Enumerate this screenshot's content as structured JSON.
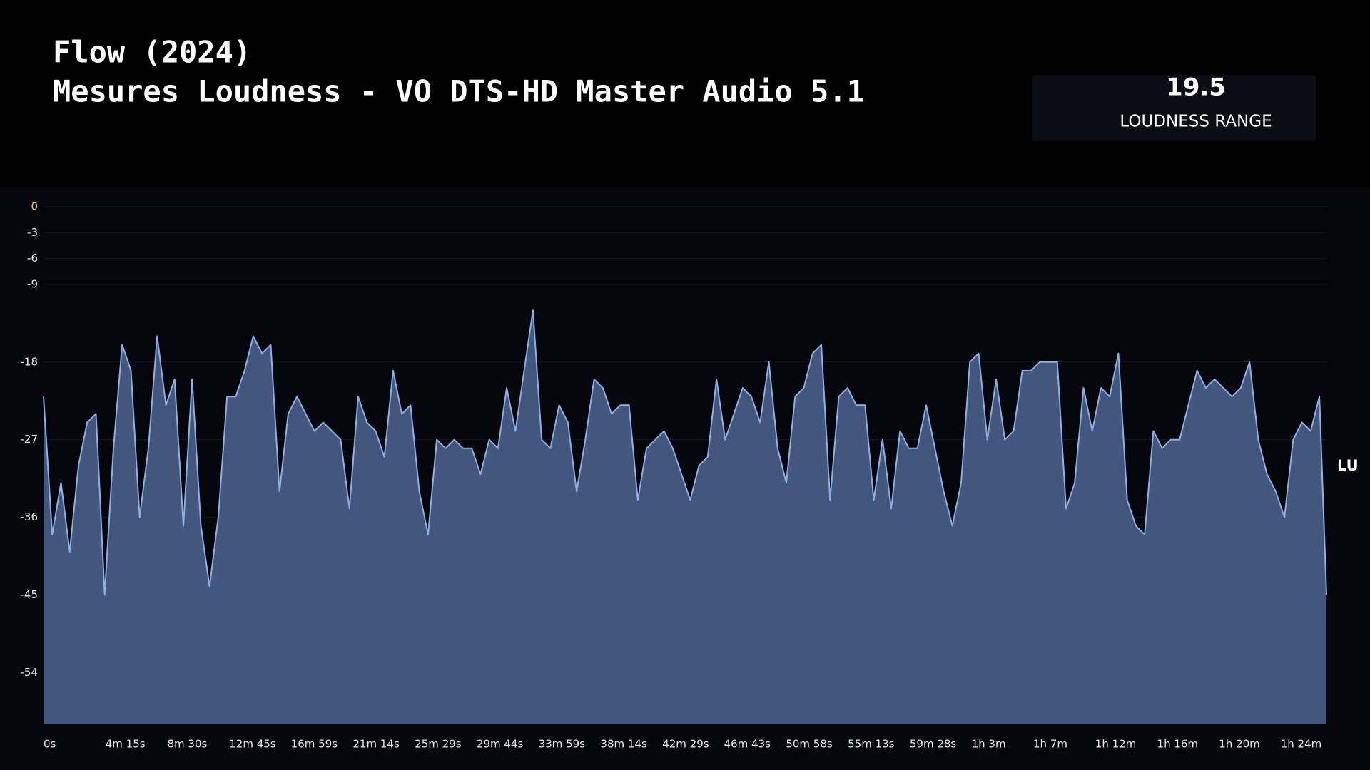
{
  "chart_data": {
    "type": "area",
    "title": "Flow (2024)",
    "subtitle": "Mesures Loudness - VO DTS-HD Master Audio 5.1",
    "stat": {
      "value": "19.5",
      "label": "LOUDNESS RANGE"
    },
    "y_label": "LU",
    "line_color": "#8ab0e8",
    "fill_color": "#4a6189",
    "grid": true,
    "xlim": [
      0,
      5285
    ],
    "ylim": [
      -60,
      0
    ],
    "yticks": [
      0,
      -3,
      -6,
      -9,
      -18,
      -27,
      -36,
      -45,
      -54
    ],
    "xticks": [
      {
        "value": 0,
        "label": "0s"
      },
      {
        "value": 255,
        "label": "4m 15s"
      },
      {
        "value": 510,
        "label": "8m 30s"
      },
      {
        "value": 765,
        "label": "12m 45s"
      },
      {
        "value": 1019,
        "label": "16m 59s"
      },
      {
        "value": 1274,
        "label": "21m 14s"
      },
      {
        "value": 1529,
        "label": "25m 29s"
      },
      {
        "value": 1784,
        "label": "29m 44s"
      },
      {
        "value": 2039,
        "label": "33m 59s"
      },
      {
        "value": 2294,
        "label": "38m 14s"
      },
      {
        "value": 2549,
        "label": "42m 29s"
      },
      {
        "value": 2803,
        "label": "46m 43s"
      },
      {
        "value": 3058,
        "label": "50m 58s"
      },
      {
        "value": 3313,
        "label": "55m 13s"
      },
      {
        "value": 3568,
        "label": "59m 28s"
      },
      {
        "value": 3823,
        "label": "1h 3m"
      },
      {
        "value": 4077,
        "label": "1h 7m"
      },
      {
        "value": 4332,
        "label": "1h 12m"
      },
      {
        "value": 4587,
        "label": "1h 16m"
      },
      {
        "value": 4842,
        "label": "1h 20m"
      },
      {
        "value": 5096,
        "label": "1h 24m"
      }
    ],
    "x": [
      0,
      36,
      72,
      108,
      144,
      180,
      216,
      252,
      288,
      324,
      360,
      396,
      432,
      468,
      504,
      540,
      576,
      612,
      648,
      684,
      720,
      756,
      792,
      828,
      864,
      900,
      936,
      972,
      1008,
      1044,
      1080,
      1116,
      1152,
      1188,
      1224,
      1260,
      1296,
      1332,
      1368,
      1404,
      1440,
      1476,
      1512,
      1548,
      1584,
      1620,
      1656,
      1692,
      1728,
      1764,
      1800,
      1836,
      1872,
      1908,
      1944,
      1980,
      2016,
      2052,
      2088,
      2124,
      2160,
      2196,
      2232,
      2268,
      2304,
      2340,
      2376,
      2412,
      2448,
      2484,
      2520,
      2556,
      2592,
      2628,
      2664,
      2700,
      2736,
      2772,
      2808,
      2844,
      2880,
      2916,
      2952,
      2988,
      3024,
      3060,
      3096,
      3132,
      3168,
      3204,
      3240,
      3276,
      3312,
      3348,
      3384,
      3420,
      3456,
      3492,
      3528,
      3564,
      3600,
      3636,
      3672,
      3708,
      3744,
      3780,
      3816,
      3852,
      3888,
      3924,
      3960,
      3996,
      4032,
      4068,
      4104,
      4140,
      4176,
      4212,
      4248,
      4284,
      4320,
      4356,
      4392,
      4428,
      4464,
      4500,
      4536,
      4572,
      4608,
      4644,
      4680,
      4716,
      4752,
      4788,
      4824,
      4860,
      4896,
      4932,
      4968,
      5004,
      5040,
      5076,
      5112,
      5148,
      5184,
      5220,
      5256,
      5285
    ],
    "values": [
      -22,
      -38,
      -32,
      -40,
      -30,
      -25,
      -24,
      -45,
      -28,
      -16,
      -19,
      -36,
      -28,
      -15,
      -23,
      -20,
      -37,
      -20,
      -37,
      -44,
      -36,
      -22,
      -22,
      -19,
      -15,
      -17,
      -16,
      -33,
      -24,
      -22,
      -24,
      -26,
      -25,
      -26,
      -27,
      -35,
      -22,
      -25,
      -26,
      -29,
      -19,
      -24,
      -23,
      -33,
      -38,
      -27,
      -28,
      -27,
      -28,
      -28,
      -31,
      -27,
      -28,
      -21,
      -26,
      -19,
      -12,
      -27,
      -28,
      -23,
      -25,
      -33,
      -27,
      -20,
      -21,
      -24,
      -23,
      -23,
      -34,
      -28,
      -27,
      -26,
      -28,
      -31,
      -34,
      -30,
      -29,
      -20,
      -27,
      -24,
      -21,
      -22,
      -25,
      -18,
      -28,
      -32,
      -22,
      -21,
      -17,
      -16,
      -34,
      -22,
      -21,
      -23,
      -23,
      -34,
      -27,
      -35,
      -26,
      -28,
      -28,
      -23,
      -28,
      -33,
      -37,
      -32,
      -18,
      -17,
      -27,
      -20,
      -27,
      -26,
      -19,
      -19,
      -18,
      -18,
      -18,
      -35,
      -32,
      -21,
      -26,
      -21,
      -22,
      -17,
      -34,
      -37,
      -38,
      -26,
      -28,
      -27,
      -27,
      -23,
      -19,
      -21,
      -20,
      -21,
      -22,
      -21,
      -18,
      -27,
      -31,
      -33,
      -36,
      -27,
      -25,
      -26,
      -22,
      -45
    ]
  }
}
